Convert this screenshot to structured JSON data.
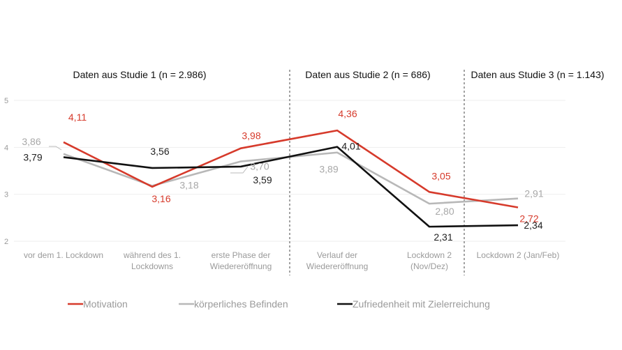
{
  "chart_data": {
    "type": "line",
    "title": "",
    "xlabel": "",
    "ylabel": "",
    "ylim": [
      2,
      5
    ],
    "yticks": [
      "5",
      "4",
      "3",
      "2"
    ],
    "grid": true,
    "legend_position": "bottom",
    "categories": [
      [
        "vor dem 1. Lockdown"
      ],
      [
        "während des 1.",
        "Lockdowns"
      ],
      [
        "erste Phase der",
        "Wiedereröffnung"
      ],
      [
        "Verlauf der",
        "Wiedereröffnung"
      ],
      [
        "Lockdown 2",
        "(Nov/Dez)"
      ],
      [
        "Lockdown 2 (Jan/Feb)"
      ]
    ],
    "study_labels": [
      "Daten aus Studie 1 (n = 2.986)",
      "Daten aus Studie 2 (n = 686)",
      "Daten aus Studie 3 (n = 1.143)"
    ],
    "series": [
      {
        "name": "Motivation",
        "color": "#d63a2b",
        "values": [
          4.11,
          3.16,
          3.98,
          4.36,
          3.05,
          2.72
        ],
        "labels": [
          "4,11",
          "3,16",
          "3,98",
          "4,36",
          "3,05",
          "2,72"
        ]
      },
      {
        "name": "körperliches Befinden",
        "color": "#b8b8b8",
        "values": [
          3.86,
          3.18,
          3.7,
          3.89,
          2.8,
          2.91
        ],
        "labels": [
          "3,86",
          "3,18",
          "3,70",
          "3,89",
          "2,80",
          "2,91"
        ]
      },
      {
        "name": "Zufriedenheit mit Zielerreichung",
        "color": "#111111",
        "values": [
          3.79,
          3.56,
          3.59,
          4.01,
          2.31,
          2.34
        ],
        "labels": [
          "3,79",
          "3,56",
          "3,59",
          "4,01",
          "2,31",
          "2,34"
        ]
      }
    ]
  }
}
